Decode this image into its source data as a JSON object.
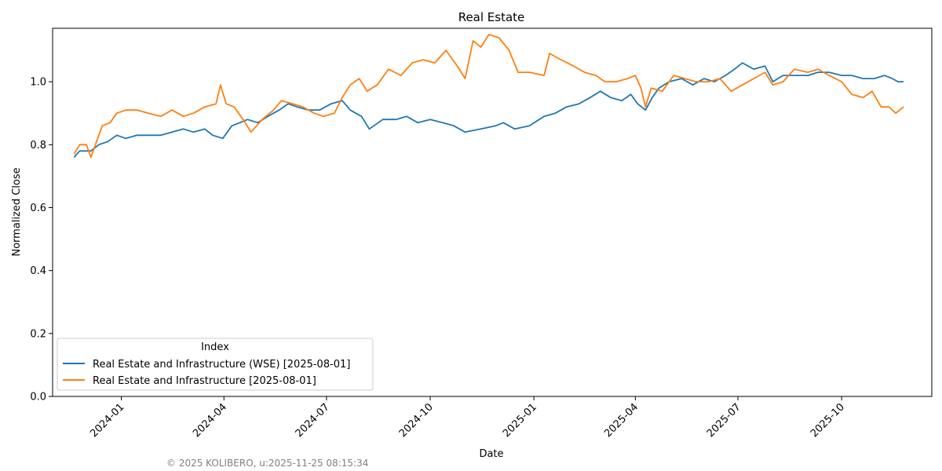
{
  "chart_data": {
    "type": "line",
    "title": "Real Estate",
    "xlabel": "Date",
    "ylabel": "Normalized Close",
    "xlim": [
      "2023-11-01",
      "2025-12-20"
    ],
    "ylim": [
      0.0,
      1.17
    ],
    "x_ticks": [
      "2024-01",
      "2024-04",
      "2024-07",
      "2024-10",
      "2025-01",
      "2025-04",
      "2025-07",
      "2025-10"
    ],
    "y_ticks": [
      0.0,
      0.2,
      0.4,
      0.6,
      0.8,
      1.0
    ],
    "y_tick_labels": [
      "0.0",
      "0.2",
      "0.4",
      "0.6",
      "0.8",
      "1.0"
    ],
    "grid": false,
    "legend": {
      "title": "Index",
      "location": "lower-left"
    },
    "footer": "© 2025 KOLIBERO, u:2025-11-25 08:15:34",
    "colors": {
      "series1": "#1f77b4",
      "series2": "#ff7f0e"
    },
    "series": [
      {
        "name": "Real Estate and Infrastructure (WSE) [2025-08-01]",
        "color": "#1f77b4",
        "points": [
          [
            "2023-11-20",
            0.76
          ],
          [
            "2023-11-25",
            0.78
          ],
          [
            "2023-12-05",
            0.78
          ],
          [
            "2023-12-12",
            0.8
          ],
          [
            "2023-12-20",
            0.81
          ],
          [
            "2023-12-28",
            0.83
          ],
          [
            "2024-01-05",
            0.82
          ],
          [
            "2024-01-15",
            0.83
          ],
          [
            "2024-01-25",
            0.83
          ],
          [
            "2024-02-05",
            0.83
          ],
          [
            "2024-02-15",
            0.84
          ],
          [
            "2024-02-25",
            0.85
          ],
          [
            "2024-03-05",
            0.84
          ],
          [
            "2024-03-15",
            0.85
          ],
          [
            "2024-03-22",
            0.83
          ],
          [
            "2024-03-31",
            0.82
          ],
          [
            "2024-04-08",
            0.86
          ],
          [
            "2024-04-15",
            0.87
          ],
          [
            "2024-04-22",
            0.88
          ],
          [
            "2024-05-01",
            0.87
          ],
          [
            "2024-05-10",
            0.89
          ],
          [
            "2024-05-20",
            0.91
          ],
          [
            "2024-05-28",
            0.93
          ],
          [
            "2024-06-05",
            0.92
          ],
          [
            "2024-06-15",
            0.91
          ],
          [
            "2024-06-25",
            0.91
          ],
          [
            "2024-07-05",
            0.93
          ],
          [
            "2024-07-15",
            0.94
          ],
          [
            "2024-07-22",
            0.91
          ],
          [
            "2024-08-01",
            0.89
          ],
          [
            "2024-08-08",
            0.85
          ],
          [
            "2024-08-20",
            0.88
          ],
          [
            "2024-09-01",
            0.88
          ],
          [
            "2024-09-10",
            0.89
          ],
          [
            "2024-09-20",
            0.87
          ],
          [
            "2024-10-01",
            0.88
          ],
          [
            "2024-10-12",
            0.87
          ],
          [
            "2024-10-22",
            0.86
          ],
          [
            "2024-11-01",
            0.84
          ],
          [
            "2024-11-15",
            0.85
          ],
          [
            "2024-11-28",
            0.86
          ],
          [
            "2024-12-05",
            0.87
          ],
          [
            "2024-12-15",
            0.85
          ],
          [
            "2024-12-28",
            0.86
          ],
          [
            "2025-01-10",
            0.89
          ],
          [
            "2025-01-20",
            0.9
          ],
          [
            "2025-01-30",
            0.92
          ],
          [
            "2025-02-10",
            0.93
          ],
          [
            "2025-02-20",
            0.95
          ],
          [
            "2025-03-01",
            0.97
          ],
          [
            "2025-03-10",
            0.95
          ],
          [
            "2025-03-20",
            0.94
          ],
          [
            "2025-03-28",
            0.96
          ],
          [
            "2025-04-03",
            0.93
          ],
          [
            "2025-04-10",
            0.91
          ],
          [
            "2025-04-16",
            0.95
          ],
          [
            "2025-04-22",
            0.98
          ],
          [
            "2025-05-01",
            1.0
          ],
          [
            "2025-05-12",
            1.01
          ],
          [
            "2025-05-22",
            0.99
          ],
          [
            "2025-06-01",
            1.01
          ],
          [
            "2025-06-10",
            1.0
          ],
          [
            "2025-06-20",
            1.02
          ],
          [
            "2025-06-28",
            1.04
          ],
          [
            "2025-07-05",
            1.06
          ],
          [
            "2025-07-15",
            1.04
          ],
          [
            "2025-07-25",
            1.05
          ],
          [
            "2025-08-01",
            1.0
          ],
          [
            "2025-08-10",
            1.02
          ],
          [
            "2025-08-20",
            1.02
          ],
          [
            "2025-09-01",
            1.02
          ],
          [
            "2025-09-10",
            1.03
          ],
          [
            "2025-09-20",
            1.03
          ],
          [
            "2025-10-01",
            1.02
          ],
          [
            "2025-10-10",
            1.02
          ],
          [
            "2025-10-20",
            1.01
          ],
          [
            "2025-10-30",
            1.01
          ],
          [
            "2025-11-08",
            1.02
          ],
          [
            "2025-11-15",
            1.01
          ],
          [
            "2025-11-20",
            1.0
          ],
          [
            "2025-11-25",
            1.0
          ]
        ]
      },
      {
        "name": "Real Estate and Infrastructure [2025-08-01]",
        "color": "#ff7f0e",
        "points": [
          [
            "2023-11-20",
            0.77
          ],
          [
            "2023-11-25",
            0.8
          ],
          [
            "2023-12-01",
            0.8
          ],
          [
            "2023-12-05",
            0.76
          ],
          [
            "2023-12-10",
            0.81
          ],
          [
            "2023-12-15",
            0.86
          ],
          [
            "2023-12-22",
            0.87
          ],
          [
            "2023-12-28",
            0.9
          ],
          [
            "2024-01-05",
            0.91
          ],
          [
            "2024-01-15",
            0.91
          ],
          [
            "2024-01-25",
            0.9
          ],
          [
            "2024-02-05",
            0.89
          ],
          [
            "2024-02-15",
            0.91
          ],
          [
            "2024-02-25",
            0.89
          ],
          [
            "2024-03-05",
            0.9
          ],
          [
            "2024-03-15",
            0.92
          ],
          [
            "2024-03-25",
            0.93
          ],
          [
            "2024-03-29",
            0.99
          ],
          [
            "2024-04-03",
            0.93
          ],
          [
            "2024-04-10",
            0.92
          ],
          [
            "2024-04-18",
            0.88
          ],
          [
            "2024-04-25",
            0.84
          ],
          [
            "2024-05-05",
            0.88
          ],
          [
            "2024-05-15",
            0.91
          ],
          [
            "2024-05-22",
            0.94
          ],
          [
            "2024-06-01",
            0.93
          ],
          [
            "2024-06-10",
            0.92
          ],
          [
            "2024-06-20",
            0.9
          ],
          [
            "2024-06-28",
            0.89
          ],
          [
            "2024-07-08",
            0.9
          ],
          [
            "2024-07-15",
            0.95
          ],
          [
            "2024-07-22",
            0.99
          ],
          [
            "2024-07-30",
            1.01
          ],
          [
            "2024-08-06",
            0.97
          ],
          [
            "2024-08-15",
            0.99
          ],
          [
            "2024-08-25",
            1.04
          ],
          [
            "2024-09-05",
            1.02
          ],
          [
            "2024-09-15",
            1.06
          ],
          [
            "2024-09-25",
            1.07
          ],
          [
            "2024-10-05",
            1.06
          ],
          [
            "2024-10-15",
            1.1
          ],
          [
            "2024-10-25",
            1.05
          ],
          [
            "2024-11-01",
            1.01
          ],
          [
            "2024-11-08",
            1.13
          ],
          [
            "2024-11-15",
            1.11
          ],
          [
            "2024-11-22",
            1.15
          ],
          [
            "2024-12-01",
            1.14
          ],
          [
            "2024-12-10",
            1.1
          ],
          [
            "2024-12-18",
            1.03
          ],
          [
            "2024-12-28",
            1.03
          ],
          [
            "2025-01-10",
            1.02
          ],
          [
            "2025-01-15",
            1.09
          ],
          [
            "2025-01-25",
            1.07
          ],
          [
            "2025-02-05",
            1.05
          ],
          [
            "2025-02-15",
            1.03
          ],
          [
            "2025-02-25",
            1.02
          ],
          [
            "2025-03-05",
            1.0
          ],
          [
            "2025-03-15",
            1.0
          ],
          [
            "2025-03-25",
            1.01
          ],
          [
            "2025-04-01",
            1.02
          ],
          [
            "2025-04-06",
            0.98
          ],
          [
            "2025-04-10",
            0.92
          ],
          [
            "2025-04-15",
            0.98
          ],
          [
            "2025-04-25",
            0.97
          ],
          [
            "2025-05-05",
            1.02
          ],
          [
            "2025-05-15",
            1.01
          ],
          [
            "2025-05-25",
            1.0
          ],
          [
            "2025-06-05",
            1.0
          ],
          [
            "2025-06-15",
            1.01
          ],
          [
            "2025-06-25",
            0.97
          ],
          [
            "2025-07-05",
            0.99
          ],
          [
            "2025-07-15",
            1.01
          ],
          [
            "2025-07-25",
            1.03
          ],
          [
            "2025-08-01",
            0.99
          ],
          [
            "2025-08-10",
            1.0
          ],
          [
            "2025-08-20",
            1.04
          ],
          [
            "2025-09-01",
            1.03
          ],
          [
            "2025-09-10",
            1.04
          ],
          [
            "2025-09-20",
            1.02
          ],
          [
            "2025-10-01",
            1.0
          ],
          [
            "2025-10-10",
            0.96
          ],
          [
            "2025-10-20",
            0.95
          ],
          [
            "2025-10-28",
            0.97
          ],
          [
            "2025-11-05",
            0.92
          ],
          [
            "2025-11-12",
            0.92
          ],
          [
            "2025-11-18",
            0.9
          ],
          [
            "2025-11-25",
            0.92
          ]
        ]
      }
    ]
  }
}
